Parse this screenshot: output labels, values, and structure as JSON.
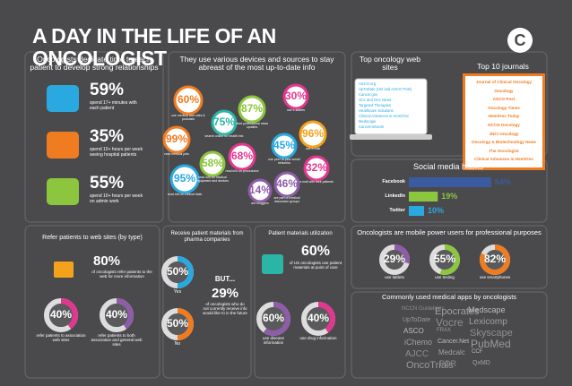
{
  "title": "A DAY IN THE LIFE OF AN ONCOLOGIST",
  "logo": "C",
  "relationships": {
    "heading": "Oncologists dedicate time to each patient to develop strong relationships",
    "items": [
      {
        "stat": "59%",
        "text": "spend 17+ minutes with each patient",
        "color": "#29a9e0"
      },
      {
        "stat": "35%",
        "text": "spend 10+ hours per week seeing hospital patients",
        "color": "#f07c22"
      },
      {
        "stat": "55%",
        "text": "spend 10+ hours per week on admin work",
        "color": "#8cc63f"
      }
    ]
  },
  "devices": {
    "heading": "They use various devices and sources to stay abreast of the most up-to-date info",
    "bubbles": [
      {
        "stat": "60%",
        "text": "use medical web sites & podcasts",
        "color": "#f07c22"
      },
      {
        "stat": "75%",
        "text": "search online for health info",
        "color": "#2bb5a6"
      },
      {
        "stat": "87%",
        "text": "read professional news updates",
        "color": "#8cc63f"
      },
      {
        "stat": "30%",
        "text": "use e-tablets",
        "color": "#e4368f"
      },
      {
        "stat": "99%",
        "text": "read medical jobs",
        "color": "#f07c22"
      },
      {
        "stat": "58%",
        "text": "read info on medical equipment and devices",
        "color": "#8cc63f"
      },
      {
        "stat": "68%",
        "text": "read info on procedures",
        "color": "#e4368f"
      },
      {
        "stat": "45%",
        "text": "use peer to peer social networks",
        "color": "#29a9e0"
      },
      {
        "stat": "96%",
        "text": "use e-mail",
        "color": "#f4a21c"
      },
      {
        "stat": "95%",
        "text": "read info on clinical trials",
        "color": "#29a9e0"
      },
      {
        "stat": "14%",
        "text": "are bloggers",
        "color": "#8e5ca8"
      },
      {
        "stat": "46%",
        "text": "are part of medical discussion groups",
        "color": "#8e5ca8"
      },
      {
        "stat": "32%",
        "text": "e-mail with their patients",
        "color": "#e4368f"
      }
    ]
  },
  "websites": {
    "heading": "Top oncology web sites",
    "items": [
      "ASCO.org",
      "UpToDate (UD and ASCO Post)",
      "Cancer.gov",
      "Onc and Onc News",
      "Targeted Therapies",
      "Healthcare Solutions",
      "Clinical Advances in Hem/Onc",
      "Medscape",
      "Cancernetwork"
    ]
  },
  "journals": {
    "heading": "Top 10 journals",
    "items": [
      "Journal of Clinical Oncology",
      "Oncology",
      "ASCO Post",
      "Oncology Times",
      "Hem/Onc Today",
      "NCCN Oncology",
      "JNCI Oncology",
      "Oncology & Biotechnology News",
      "The Oncologist",
      "Clinical Advances in Hem/Onc"
    ]
  },
  "social": {
    "heading": "Social media habits",
    "rows": [
      {
        "name": "Facebook",
        "value": 54,
        "label": "54%",
        "color": "#3b5ba0"
      },
      {
        "name": "LinkedIn",
        "value": 19,
        "label": "19%",
        "color": "#8cc63f"
      },
      {
        "name": "Twitter",
        "value": 10,
        "label": "10%",
        "color": "#29a9e0"
      }
    ]
  },
  "referral": {
    "heading": "Refer patients to web sites (by type)",
    "stat": "80%",
    "text": "of oncologists refer patients to the web for more information",
    "donuts": [
      {
        "value": 40,
        "label": "40%",
        "text": "refer patients to association web sites",
        "color": "#e4368f"
      },
      {
        "value": 40,
        "label": "40%",
        "text": "refer patients to both association and general web sites",
        "color": "#8e5ca8"
      }
    ]
  },
  "pharma": {
    "heading": "Receive patient materials from pharma companies",
    "donuts": [
      {
        "value": 50,
        "label": "50%",
        "text": "Yes",
        "color": "#29a9e0"
      },
      {
        "value": 50,
        "label": "50%",
        "text": "No",
        "color": "#f07c22"
      }
    ],
    "but": "BUT...",
    "stat": "29%",
    "text": "of oncologists who do not currently receive info would like to in the future"
  },
  "utilization": {
    "heading": "Patient materials utilization",
    "stat": "60%",
    "text": "of US oncologists use patient materials at point of care",
    "donuts": [
      {
        "value": 60,
        "label": "60%",
        "text": "use disease information",
        "color": "#8e5ca8"
      },
      {
        "value": 40,
        "label": "40%",
        "text": "use drug information",
        "color": "#e4368f"
      }
    ]
  },
  "mobile": {
    "heading": "Oncologists are mobile power users for professional purposes",
    "donuts": [
      {
        "value": 29,
        "label": "29%",
        "text": "use tablets",
        "color": "#8e5ca8"
      },
      {
        "value": 55,
        "label": "55%",
        "text": "use texting",
        "color": "#8cc63f"
      },
      {
        "value": 82,
        "label": "82%",
        "text": "use smartphones",
        "color": "#f07c22"
      }
    ]
  },
  "apps": {
    "heading": "Commonly used medical apps by oncologists",
    "words": [
      "NCCN Guidelines",
      "Epocrates",
      "Medscape",
      "UpToDate",
      "Vocre",
      "Lexicomp",
      "ASCO",
      "FRAX",
      "Skyscape",
      "iChemo",
      "Cancer.Net",
      "PubMed",
      "AJCC",
      "Medcalc",
      "CCF",
      "OncoTrials",
      "PDR",
      "QxMD"
    ]
  }
}
